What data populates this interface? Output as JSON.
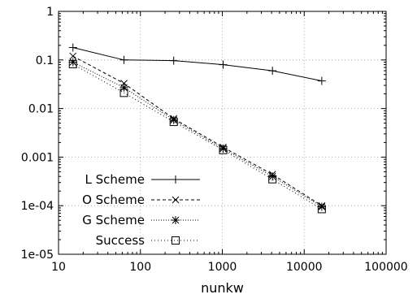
{
  "chart_data": {
    "type": "line",
    "x_scale": "log",
    "y_scale": "log",
    "xlim": [
      10,
      100000
    ],
    "ylim": [
      1e-05,
      1
    ],
    "grid": true,
    "legend_position": "bottom-left",
    "xlabel": "nunkw",
    "ylabel": "",
    "title": "",
    "x_ticks": [
      10,
      100,
      1000,
      10000,
      100000
    ],
    "x_tick_labels": [
      "10",
      "100",
      "1000",
      "10000",
      "100000"
    ],
    "y_ticks": [
      1e-05,
      0.0001,
      0.001,
      0.01,
      0.1,
      1
    ],
    "y_tick_labels": [
      "1e-05",
      "1e-04",
      "0.001",
      "0.01",
      "0.1",
      "1"
    ],
    "x": [
      15,
      63,
      255,
      1023,
      4095,
      16383
    ],
    "series": [
      {
        "name": "L Scheme",
        "marker": "plus",
        "dash": "",
        "values": [
          0.18,
          0.1,
          0.097,
          0.08,
          0.06,
          0.037
        ]
      },
      {
        "name": "O Scheme",
        "marker": "cross",
        "dash": "4 3",
        "values": [
          0.12,
          0.033,
          0.0062,
          0.0016,
          0.00044,
          0.0001
        ]
      },
      {
        "name": "G Scheme",
        "marker": "star",
        "dash": "1 2",
        "values": [
          0.09,
          0.027,
          0.0058,
          0.0015,
          0.0004,
          9.5e-05
        ]
      },
      {
        "name": "Success",
        "marker": "square",
        "dash": "1 3",
        "values": [
          0.082,
          0.021,
          0.0053,
          0.0014,
          0.00035,
          8.5e-05
        ]
      }
    ]
  }
}
